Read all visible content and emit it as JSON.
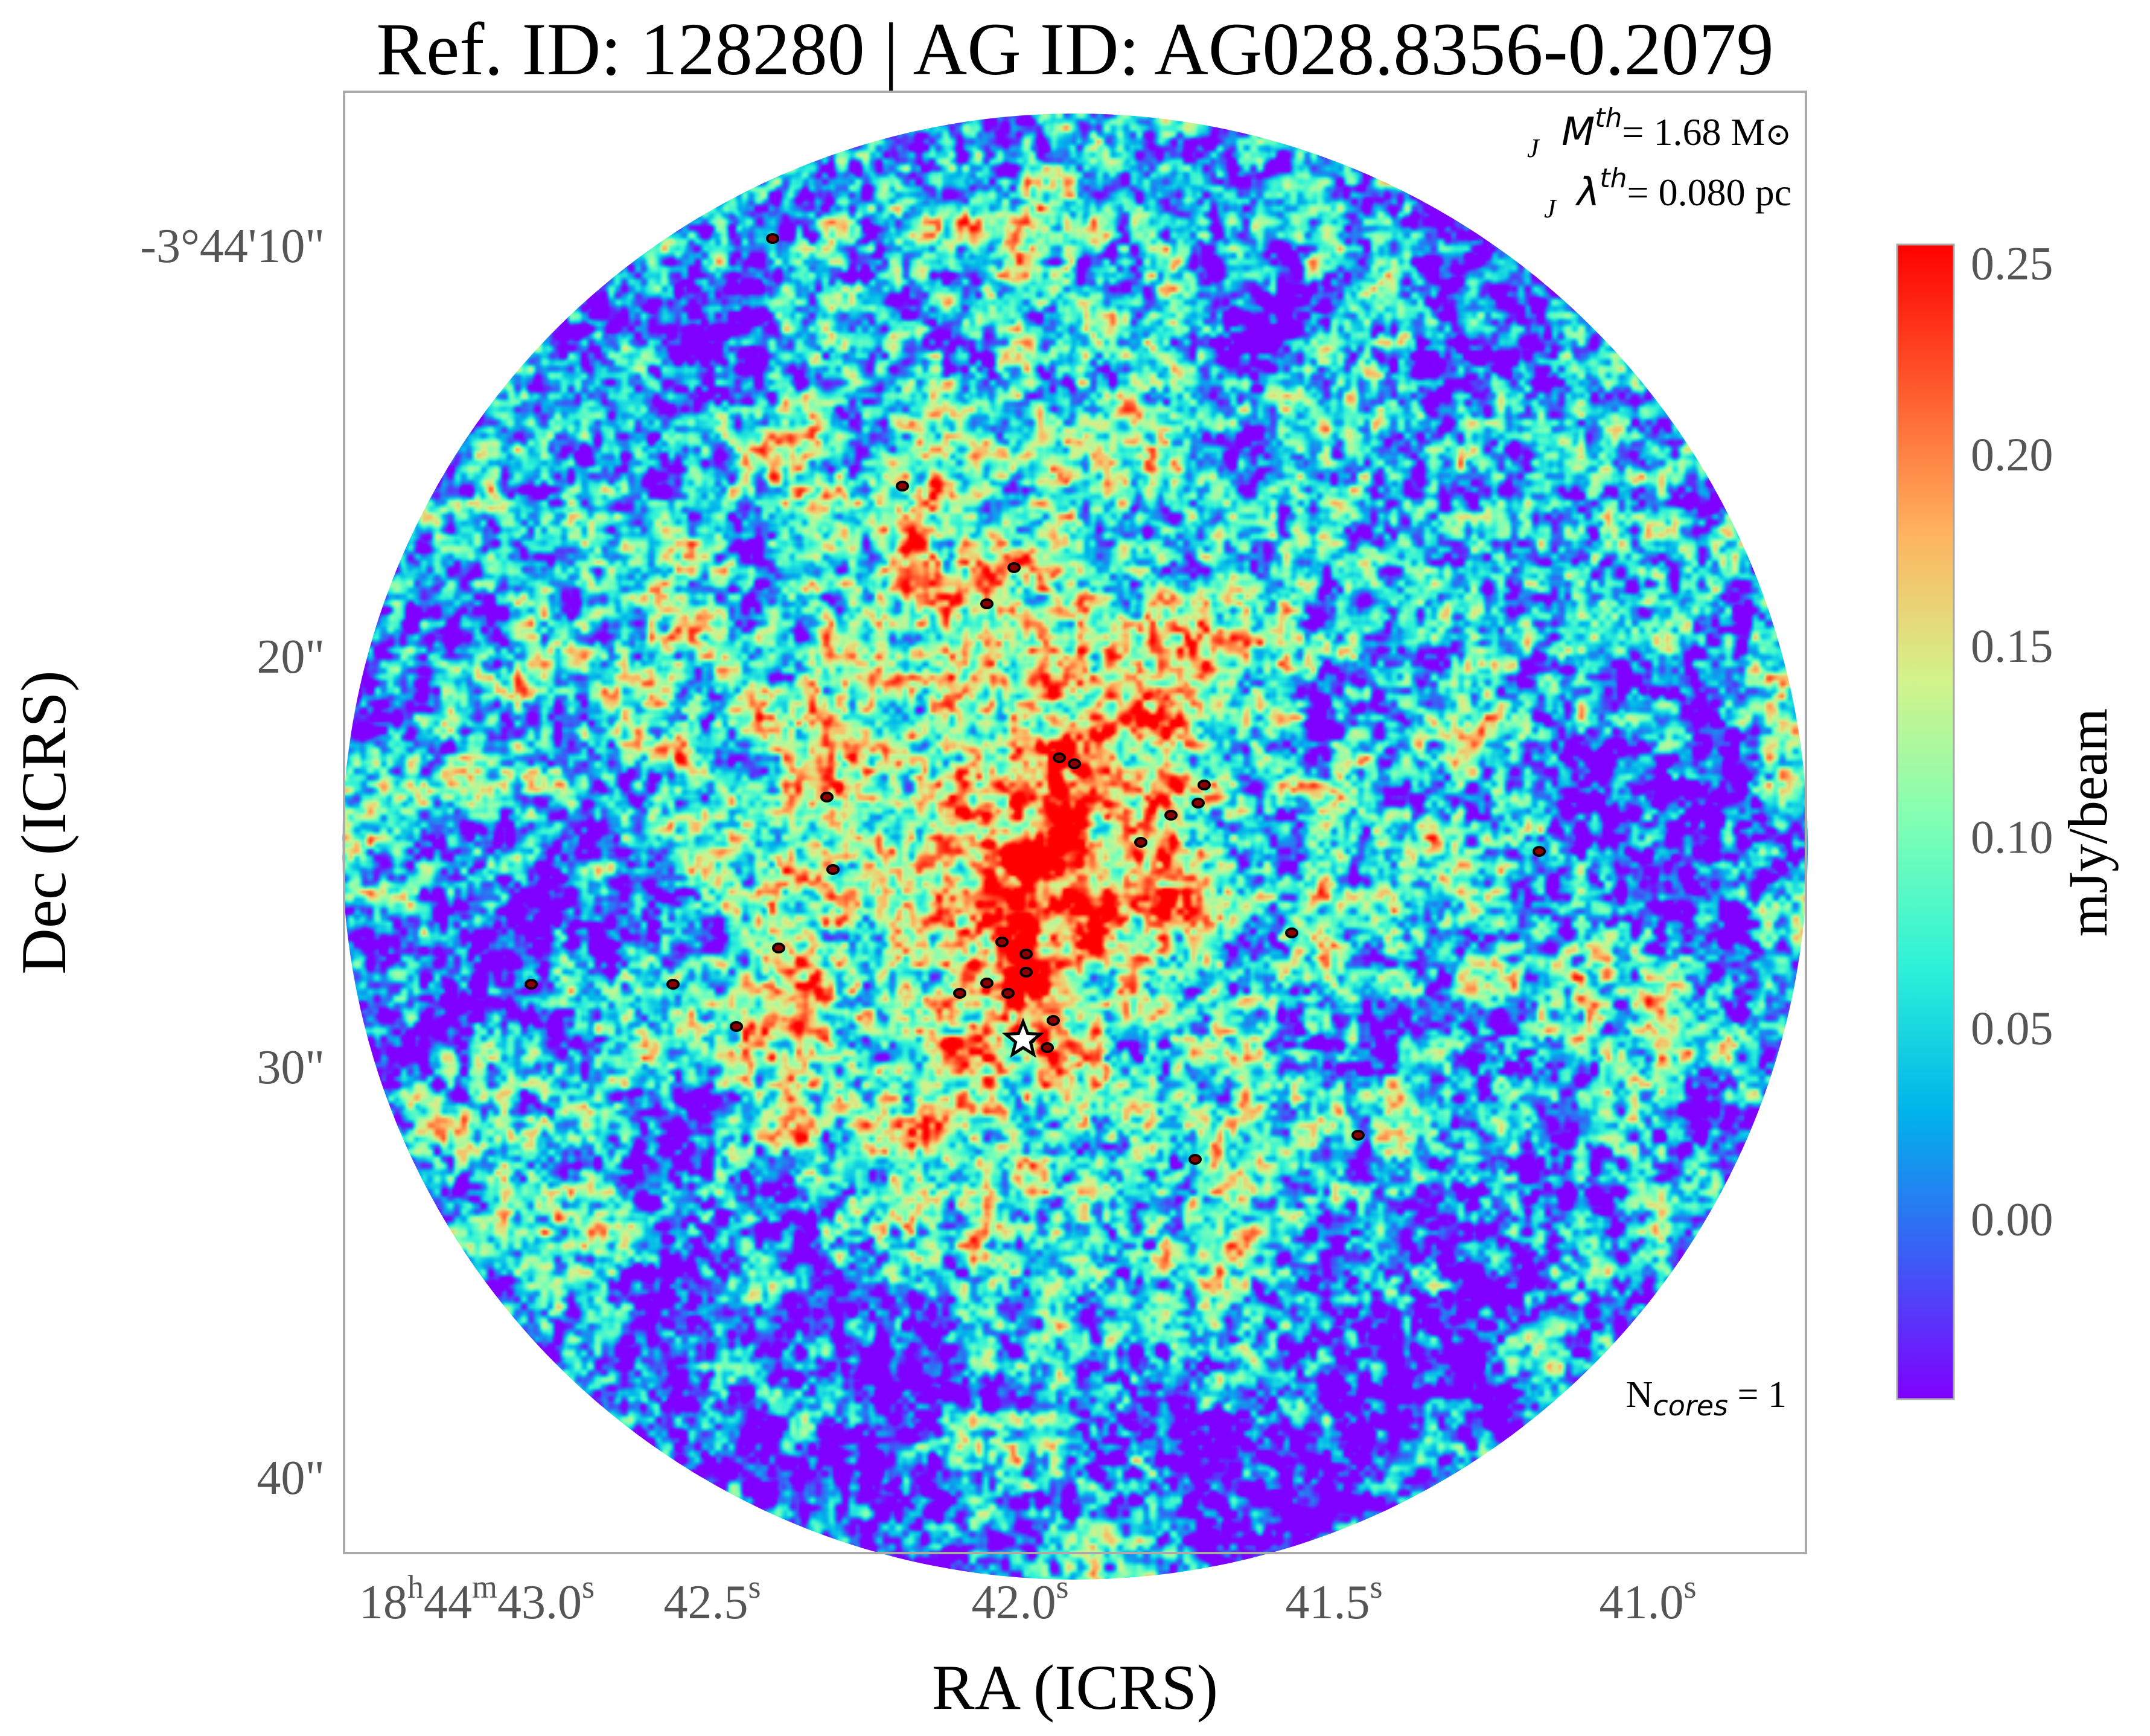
{
  "title": "Ref. ID: 128280 | AG ID: AG028.8356-0.2079",
  "annotations": {
    "mass_symbol": "M",
    "mass_sub": "J",
    "mass_sup": "th",
    "mass_value": "= 1.68 M",
    "mass_unit_symbol": "⊙",
    "length_symbol": "λ",
    "length_sub": "J",
    "length_sup": "th",
    "length_value": "= 0.080 pc",
    "ncores_symbol": "N",
    "ncores_sub": "cores",
    "ncores_value": " = 1"
  },
  "axes": {
    "x_title": "RA (ICRS)",
    "y_title": "Dec (ICRS)",
    "x_ticks": [
      {
        "pre": "18",
        "h": "h",
        "mid": "44",
        "m": "m",
        "val": "43.0",
        "s": "s"
      },
      {
        "pre": "",
        "h": "",
        "mid": "",
        "m": "",
        "val": "42.5",
        "s": "s"
      },
      {
        "pre": "",
        "h": "",
        "mid": "",
        "m": "",
        "val": "42.0",
        "s": "s"
      },
      {
        "pre": "",
        "h": "",
        "mid": "",
        "m": "",
        "val": "41.5",
        "s": "s"
      },
      {
        "pre": "",
        "h": "",
        "mid": "",
        "m": "",
        "val": "41.0",
        "s": "s"
      }
    ],
    "y_ticks": [
      "-3°44'10\"",
      "20\"",
      "30\"",
      "40\""
    ]
  },
  "colorbar": {
    "label": "mJy/beam",
    "ticks": [
      "0.25",
      "0.20",
      "0.15",
      "0.10",
      "0.05",
      "0.00"
    ],
    "tick_values": [
      0.25,
      0.2,
      0.15,
      0.1,
      0.05,
      0.0
    ],
    "range": [
      -0.047,
      0.255
    ],
    "colormap": "rainbow",
    "colors": [
      "#8000ff",
      "#3b5ef6",
      "#00b4eb",
      "#2df2d8",
      "#80ffb4",
      "#d4f28a",
      "#ffb360",
      "#ff5a2d",
      "#ff0000"
    ]
  },
  "image": {
    "description_free": true,
    "background_color": "#8000ff",
    "marker": "star",
    "contour_color": "#000000"
  }
}
